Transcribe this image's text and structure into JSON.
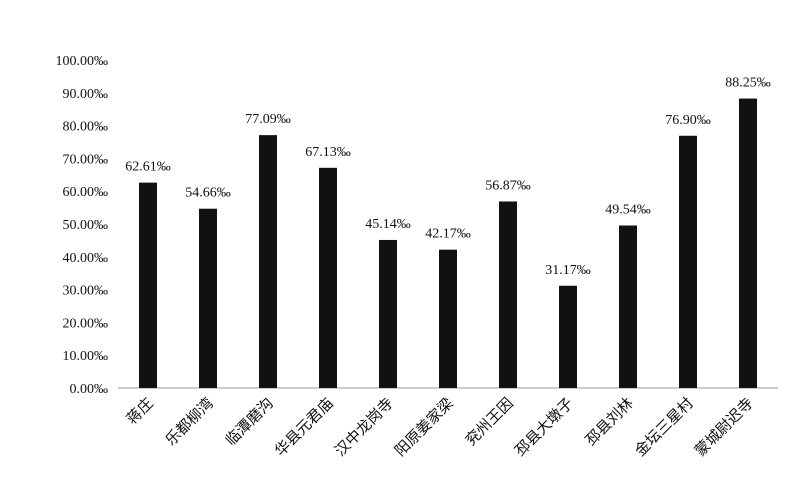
{
  "chart_data": {
    "type": "bar",
    "title": "",
    "xlabel": "",
    "ylabel": "",
    "ylim": [
      0,
      100
    ],
    "yticks": [
      "0.00‰",
      "10.00‰",
      "20.00‰",
      "30.00‰",
      "40.00‰",
      "50.00‰",
      "60.00‰",
      "70.00‰",
      "80.00‰",
      "90.00‰",
      "100.00‰"
    ],
    "grid": false,
    "bar_color": "#111111",
    "categories": [
      "蒋庄",
      "乐都柳湾",
      "临潭磨沟",
      "华县元君庙",
      "汉中龙岗寺",
      "阳原姜家梁",
      "兖州王因",
      "邳县大墩子",
      "邳县刘林",
      "金坛三星村",
      "蒙城尉迟寺"
    ],
    "values": [
      62.61,
      54.66,
      77.09,
      67.13,
      45.14,
      42.17,
      56.87,
      31.17,
      49.54,
      76.9,
      88.25
    ],
    "data_labels": [
      "62.61‰",
      "54.66‰",
      "77.09‰",
      "67.13‰",
      "45.14‰",
      "42.17‰",
      "56.87‰",
      "31.17‰",
      "49.54‰",
      "76.90‰",
      "88.25‰"
    ]
  }
}
